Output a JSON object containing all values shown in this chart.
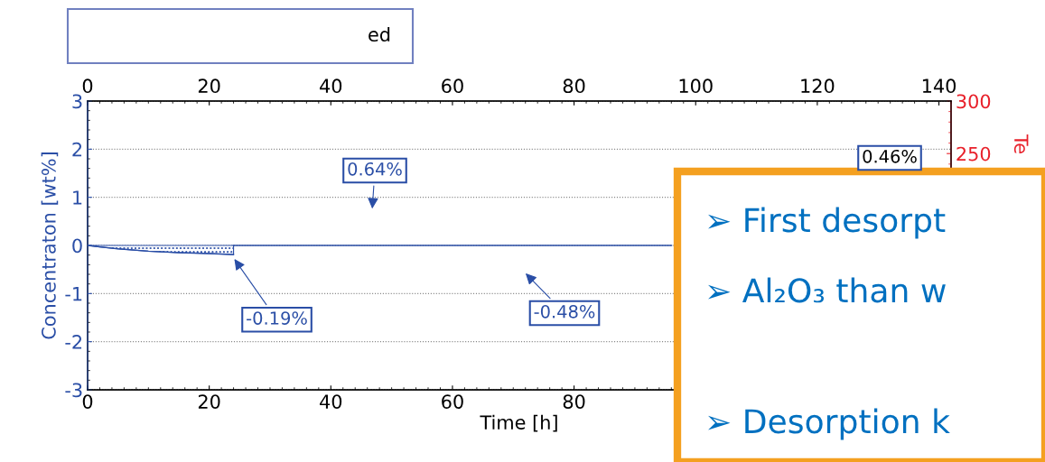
{
  "chart_data": {
    "type": "line",
    "xlabel": "Time [h]",
    "ylabel": "Concentraton [wt%]",
    "y2label": "Te",
    "xlim": [
      0,
      142
    ],
    "xticks": [
      0,
      20,
      40,
      60,
      80
    ],
    "x2lim": [
      0,
      142
    ],
    "x2ticks": [
      0,
      20,
      40,
      60,
      80,
      100,
      120,
      140
    ],
    "ylim": [
      -3,
      3
    ],
    "yticks": [
      -3,
      -2,
      -1,
      0,
      1,
      2,
      3
    ],
    "y2lim": [
      25,
      300
    ],
    "y2ticks": [
      250,
      300
    ],
    "grid": "y",
    "series": [
      {
        "type": "area",
        "color": "#2a4ea6",
        "x": [
          0,
          2,
          5,
          10,
          15,
          20,
          24
        ],
        "values": [
          0,
          -0.03,
          -0.07,
          -0.12,
          -0.15,
          -0.17,
          -0.19
        ]
      },
      {
        "color": "#2a4ea6",
        "x": [
          24,
          96
        ],
        "values": [
          0,
          0
        ]
      }
    ],
    "annotations": [
      "0.64%",
      {
        "text": "-0.19%",
        "x": 23.9,
        "y": -0.24
      },
      "-0.48%",
      "0.46%",
      "ed",
      "➢ First desorpt",
      "➢ Al₂O₃ than w",
      "➢ Desorption k"
    ]
  }
}
